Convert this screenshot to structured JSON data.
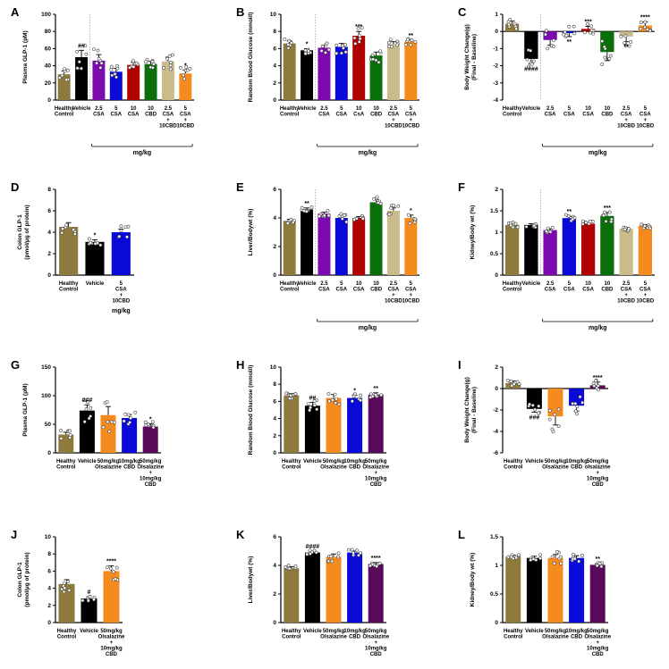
{
  "colors": {
    "healthy": "#8d7a3c",
    "vehicle": "#000000",
    "purple": "#7d0ab0",
    "blue": "#0a0ad8",
    "red": "#b00000",
    "green": "#0a6e0a",
    "beige": "#c9bb8a",
    "orange": "#f58a1f",
    "darkpurple": "#5a0a5a"
  },
  "chart_data": [
    {
      "panel": "A",
      "type": "bar",
      "ylabel": "Plasma GLP-1 (pM)",
      "ylim": [
        0,
        100
      ],
      "yticks": [
        0,
        20,
        40,
        60,
        80,
        100
      ],
      "divider_after": 1,
      "unit_label": "mg/kg",
      "bracket": [
        2,
        7
      ],
      "categories": [
        "Healthy\nControl",
        "Vehicle",
        "2.5\nCSA",
        "5\nCSA",
        "10\nCSA",
        "10\nCBD",
        "2.5\nCSA\n+\n10CBD",
        "5\nCSA\n+\n10CBD"
      ],
      "values": [
        30,
        50,
        46,
        33,
        41,
        42,
        45,
        31
      ],
      "errors": [
        4,
        8,
        7,
        4,
        3,
        3,
        5,
        4
      ],
      "colors": [
        "healthy",
        "vehicle",
        "purple",
        "blue",
        "red",
        "green",
        "beige",
        "orange"
      ],
      "marks": [
        "",
        "##",
        "",
        "",
        "",
        "",
        "",
        "*"
      ]
    },
    {
      "panel": "B",
      "type": "bar",
      "ylabel": "Random Blood Glucose (mmol/l)",
      "ylim": [
        0,
        10
      ],
      "yticks": [
        0,
        2,
        4,
        6,
        8,
        10
      ],
      "divider_after": 1,
      "unit_label": "mg/kg",
      "bracket": [
        2,
        7
      ],
      "categories": [
        "Healthy\nControl",
        "Vehicle",
        "2.5\nCSA",
        "5\nCSA",
        "10\nCsA",
        "10\nCBD",
        "2.5\nCSA\n+\n10CBD",
        "5\nCSA\n+\n10CBD"
      ],
      "values": [
        6.6,
        5.8,
        6.1,
        6.2,
        7.5,
        5.2,
        6.5,
        6.8
      ],
      "errors": [
        0.3,
        0.2,
        0.3,
        0.4,
        0.5,
        0.4,
        0.3,
        0.2
      ],
      "colors": [
        "healthy",
        "vehicle",
        "purple",
        "blue",
        "red",
        "green",
        "beige",
        "orange"
      ],
      "marks": [
        "",
        "*",
        "",
        "",
        "***",
        "",
        "",
        "**"
      ]
    },
    {
      "panel": "C",
      "type": "bar",
      "ylabel": "Body Weight Change(g)\n(Final - Baseline)",
      "ylim": [
        -4,
        1
      ],
      "yticks": [
        -4,
        -3,
        -2,
        -1,
        0,
        1
      ],
      "divider_after": 1,
      "unit_label": "mg/kg",
      "bracket": [
        2,
        7
      ],
      "categories": [
        "Healthy\nControl",
        "Vehicle",
        "2.5\nCSA",
        "5\nCSA",
        "10\nCSA",
        "10\nCBD",
        "2.5\nCSA\n+\n10CBD",
        "5\nCSA\n+\n10CBD"
      ],
      "values": [
        0.45,
        -1.6,
        -0.5,
        -0.1,
        0.15,
        -1.2,
        -0.3,
        0.35
      ],
      "errors": [
        0.15,
        0.3,
        0.3,
        0.2,
        0.15,
        0.5,
        0.3,
        0.2
      ],
      "colors": [
        "healthy",
        "vehicle",
        "purple",
        "blue",
        "red",
        "green",
        "beige",
        "orange"
      ],
      "marks": [
        "",
        "####",
        "",
        "**",
        "***",
        "",
        "**",
        "****"
      ]
    },
    {
      "panel": "D",
      "type": "bar",
      "ylabel": "Colon  GLP-1\n(pmol/μg of protein)",
      "ylim": [
        0,
        8
      ],
      "yticks": [
        0,
        2,
        4,
        6,
        8
      ],
      "divider_after": null,
      "unit_label": "mg/kg",
      "bracket": null,
      "categories": [
        "Healthy\nControl",
        "Vehicle",
        "5\nCSA\n+\n10CBD"
      ],
      "values": [
        4.5,
        3.1,
        4.0
      ],
      "errors": [
        0.4,
        0.2,
        0.3
      ],
      "colors": [
        "healthy",
        "vehicle",
        "blue"
      ],
      "marks": [
        "",
        "*",
        ""
      ]
    },
    {
      "panel": "E",
      "type": "bar",
      "ylabel": "Liver/Bodywt (%)",
      "ylim": [
        0,
        6
      ],
      "yticks": [
        0,
        2,
        4,
        6
      ],
      "divider_after": 1,
      "unit_label": "mg/kg",
      "bracket": [
        2,
        7
      ],
      "categories": [
        "Healthy\nControl",
        "Vehicle",
        "2.5\nCSA",
        "5\nCSA",
        "10\nCSA",
        "10\nCBD",
        "2.5\nCSA\n+\n10CBD",
        "5\nCSA\n+\n10CBD"
      ],
      "values": [
        3.8,
        4.6,
        4.3,
        4.0,
        4.0,
        5.1,
        4.5,
        4.0
      ],
      "errors": [
        0.1,
        0.1,
        0.1,
        0.2,
        0.1,
        0.2,
        0.2,
        0.2
      ],
      "colors": [
        "healthy",
        "vehicle",
        "purple",
        "blue",
        "red",
        "green",
        "beige",
        "orange"
      ],
      "marks": [
        "",
        "**",
        "",
        "",
        "",
        "",
        "",
        "*"
      ]
    },
    {
      "panel": "F",
      "type": "bar",
      "ylabel": "Kidney/Body wt (%)",
      "ylim": [
        0,
        2
      ],
      "yticks": [
        0,
        0.5,
        1.0,
        1.5,
        2.0
      ],
      "divider_after": 1,
      "unit_label": "mg/kg",
      "bracket": [
        2,
        7
      ],
      "categories": [
        "Healthy\nControl",
        "Vehicle",
        "2.5\nCSA",
        "5\nCSA",
        "10\nCSA",
        "10\nCBD",
        "2.5\nCSA\n+\n10CBD",
        "5\nCSA\n+\n10CBD"
      ],
      "values": [
        1.17,
        1.17,
        1.05,
        1.33,
        1.2,
        1.38,
        1.08,
        1.15
      ],
      "errors": [
        0.03,
        0.03,
        0.03,
        0.04,
        0.03,
        0.08,
        0.03,
        0.03
      ],
      "colors": [
        "healthy",
        "vehicle",
        "purple",
        "blue",
        "red",
        "green",
        "beige",
        "orange"
      ],
      "marks": [
        "",
        "",
        "",
        "**",
        "",
        "***",
        "",
        ""
      ]
    },
    {
      "panel": "G",
      "type": "bar",
      "ylabel": "Plasma GLP-1 (pM)",
      "ylim": [
        0,
        150
      ],
      "yticks": [
        0,
        50,
        100,
        150
      ],
      "divider_after": null,
      "unit_label": "",
      "bracket": null,
      "categories": [
        "Healthy\nControl",
        "Vehicle",
        "50mg/kg\nOlsalazine",
        "10mg/kg\nCBD",
        "50mg/kg\nOlsalazine\n+\n10mg/kg\nCBD"
      ],
      "values": [
        32,
        74,
        66,
        61,
        46
      ],
      "errors": [
        4,
        10,
        15,
        6,
        5
      ],
      "colors": [
        "healthy",
        "vehicle",
        "orange",
        "blue",
        "darkpurple"
      ],
      "marks": [
        "",
        "###",
        "",
        "",
        "*"
      ]
    },
    {
      "panel": "H",
      "type": "bar",
      "ylabel": "Random Blood Glucose (mmol/l)",
      "ylim": [
        0,
        10
      ],
      "yticks": [
        0,
        2,
        4,
        6,
        8,
        10
      ],
      "divider_after": null,
      "unit_label": "",
      "bracket": null,
      "categories": [
        "Healthy\nControl",
        "Vehicle",
        "50mg/kg\nOlsalazine",
        "10mg/kg\nCBD",
        "50mg/kg\nOlsalazine\n+\n10mg/kg\nCBD"
      ],
      "values": [
        6.7,
        5.5,
        6.4,
        6.4,
        6.8
      ],
      "errors": [
        0.2,
        0.4,
        0.4,
        0.3,
        0.2
      ],
      "colors": [
        "healthy",
        "vehicle",
        "orange",
        "blue",
        "darkpurple"
      ],
      "marks": [
        "",
        "##",
        "",
        "*",
        "**"
      ]
    },
    {
      "panel": "I",
      "type": "bar",
      "ylabel": "Body Weight Change(g)\n(Final - Baseline)",
      "ylim": [
        -6,
        2
      ],
      "yticks": [
        -6,
        -4,
        -2,
        0,
        2
      ],
      "divider_after": null,
      "unit_label": "",
      "bracket": null,
      "categories": [
        "Healthy\nControl",
        "Vehicle",
        "50mg/kg\nOlsalazine",
        "10mg/kg\nCBD",
        "50mg/kg\nolsalazine\n+\n10mg/kg\nCBD"
      ],
      "values": [
        0.5,
        -1.9,
        -2.6,
        -1.6,
        0.3
      ],
      "errors": [
        0.2,
        0.3,
        0.8,
        0.5,
        0.3
      ],
      "colors": [
        "healthy",
        "vehicle",
        "orange",
        "blue",
        "darkpurple"
      ],
      "marks": [
        "",
        "###",
        "",
        "",
        "****"
      ]
    },
    {
      "panel": "J",
      "type": "bar",
      "ylabel": "Colon GLP-1\n(pmol/μg of protein)",
      "ylim": [
        0,
        10
      ],
      "yticks": [
        0,
        2,
        4,
        6,
        8,
        10
      ],
      "divider_after": null,
      "unit_label": "",
      "bracket": null,
      "categories": [
        "Healthy\nControl",
        "Vehicle",
        "50mg/kg\nOlsalazine\n+\n10mg/kg\nCBD"
      ],
      "values": [
        4.5,
        2.8,
        6.0
      ],
      "errors": [
        0.5,
        0.2,
        0.6
      ],
      "colors": [
        "healthy",
        "vehicle",
        "orange"
      ],
      "marks": [
        "",
        "#",
        "****"
      ]
    },
    {
      "panel": "K",
      "type": "bar",
      "ylabel": "Liver/Bodywt (%)",
      "ylim": [
        0,
        6
      ],
      "yticks": [
        0,
        2,
        4,
        6
      ],
      "divider_after": null,
      "unit_label": "",
      "bracket": null,
      "categories": [
        "Healthy\nControl",
        "Vehicle",
        "50mg/kg\nOlsalazine",
        "10mg/kg\nCBD",
        "50mg/kg\nOlsalazine\n+\n10mg/kg\nCBD"
      ],
      "values": [
        3.8,
        4.9,
        4.6,
        4.9,
        4.1
      ],
      "errors": [
        0.1,
        0.1,
        0.2,
        0.1,
        0.1
      ],
      "colors": [
        "healthy",
        "vehicle",
        "orange",
        "blue",
        "darkpurple"
      ],
      "marks": [
        "",
        "####",
        "",
        "",
        "****"
      ]
    },
    {
      "panel": "L",
      "type": "bar",
      "ylabel": "Kidney/Body wt (%)",
      "ylim": [
        0,
        1.5
      ],
      "yticks": [
        0,
        0.5,
        1.0,
        1.5
      ],
      "divider_after": null,
      "unit_label": "",
      "bracket": null,
      "categories": [
        "Healthy\nControl",
        "Vehicle",
        "50mg/kg\nOlsalazine",
        "10mg/kg\nCBD",
        "50mg/kg\nOlsalazine\n+\n10mg/kg\nCBD"
      ],
      "values": [
        1.15,
        1.13,
        1.13,
        1.13,
        1.01
      ],
      "errors": [
        0.03,
        0.03,
        0.06,
        0.04,
        0.02
      ],
      "colors": [
        "healthy",
        "vehicle",
        "orange",
        "blue",
        "darkpurple"
      ],
      "marks": [
        "",
        "",
        "",
        "",
        "**"
      ]
    }
  ]
}
